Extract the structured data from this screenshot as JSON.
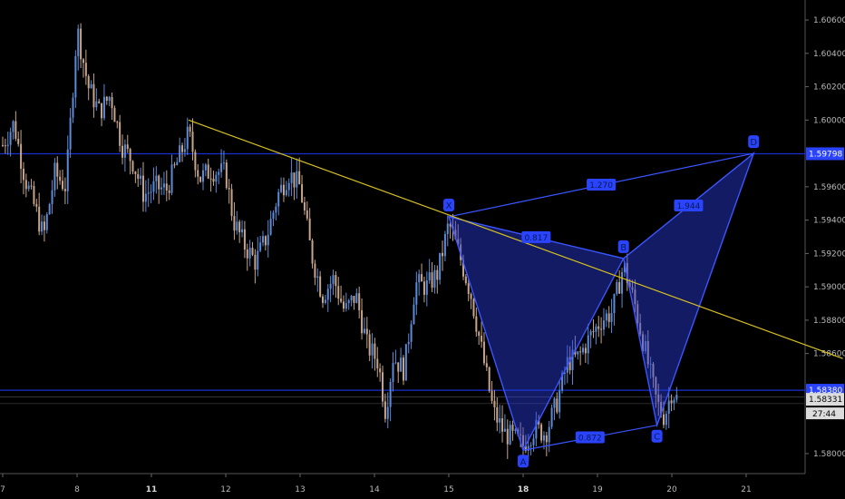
{
  "chart_data": {
    "type": "candlestick",
    "ylim": [
      1.5788,
      1.6072
    ],
    "xlim": [
      7,
      22.2
    ],
    "y_ticks": [
      "1.60600",
      "1.60400",
      "1.60200",
      "1.60000",
      "1.59600",
      "1.59400",
      "1.59200",
      "1.59000",
      "1.58800",
      "1.58600",
      "1.58000"
    ],
    "x_ticks": [
      {
        "label": "7",
        "x": 7.0,
        "bold": false
      },
      {
        "label": "8",
        "x": 8.0,
        "bold": false
      },
      {
        "label": "11",
        "x": 9.0,
        "bold": true
      },
      {
        "label": "12",
        "x": 10.0,
        "bold": false
      },
      {
        "label": "13",
        "x": 11.0,
        "bold": false
      },
      {
        "label": "14",
        "x": 12.0,
        "bold": false
      },
      {
        "label": "15",
        "x": 13.0,
        "bold": false
      },
      {
        "label": "18",
        "x": 14.0,
        "bold": true
      },
      {
        "label": "19",
        "x": 15.0,
        "bold": false
      },
      {
        "label": "20",
        "x": 16.0,
        "bold": false
      },
      {
        "label": "21",
        "x": 17.0,
        "bold": false
      }
    ],
    "horizontal_levels": [
      {
        "value": 1.59798,
        "label": "1.59798"
      },
      {
        "value": 1.5838,
        "label": "1.58380"
      }
    ],
    "last_price": "1.58331",
    "countdown": "27:44",
    "price_path": [
      [
        7.0,
        1.5985
      ],
      [
        7.15,
        1.5998
      ],
      [
        7.3,
        1.5965
      ],
      [
        7.45,
        1.5945
      ],
      [
        7.55,
        1.593
      ],
      [
        7.7,
        1.5968
      ],
      [
        7.85,
        1.596
      ],
      [
        8.0,
        1.6055
      ],
      [
        8.15,
        1.602
      ],
      [
        8.3,
        1.6005
      ],
      [
        8.45,
        1.6015
      ],
      [
        8.6,
        1.5985
      ],
      [
        8.75,
        1.5975
      ],
      [
        8.9,
        1.5955
      ],
      [
        9.05,
        1.596
      ],
      [
        9.2,
        1.5958
      ],
      [
        9.35,
        1.5975
      ],
      [
        9.5,
        1.5992
      ],
      [
        9.65,
        1.5965
      ],
      [
        9.8,
        1.597
      ],
      [
        10.0,
        1.5968
      ],
      [
        10.1,
        1.594
      ],
      [
        10.25,
        1.5925
      ],
      [
        10.4,
        1.5915
      ],
      [
        10.55,
        1.593
      ],
      [
        10.7,
        1.5955
      ],
      [
        10.85,
        1.5968
      ],
      [
        11.0,
        1.596
      ],
      [
        11.15,
        1.592
      ],
      [
        11.3,
        1.5895
      ],
      [
        11.45,
        1.5905
      ],
      [
        11.6,
        1.5885
      ],
      [
        11.75,
        1.5895
      ],
      [
        11.9,
        1.5865
      ],
      [
        12.05,
        1.5855
      ],
      [
        12.15,
        1.5825
      ],
      [
        12.25,
        1.5858
      ],
      [
        12.4,
        1.585
      ],
      [
        12.55,
        1.5902
      ],
      [
        12.7,
        1.59
      ],
      [
        12.85,
        1.5908
      ],
      [
        13.0,
        1.5938
      ],
      [
        13.15,
        1.5918
      ],
      [
        13.3,
        1.5895
      ],
      [
        13.45,
        1.586
      ],
      [
        13.6,
        1.5825
      ],
      [
        13.75,
        1.5812
      ],
      [
        13.85,
        1.581
      ],
      [
        14.0,
        1.5805
      ],
      [
        14.15,
        1.5815
      ],
      [
        14.3,
        1.5812
      ],
      [
        14.45,
        1.583
      ],
      [
        14.6,
        1.5855
      ],
      [
        14.75,
        1.5858
      ],
      [
        14.9,
        1.587
      ],
      [
        15.05,
        1.588
      ],
      [
        15.2,
        1.5885
      ],
      [
        15.35,
        1.5913
      ],
      [
        15.5,
        1.589
      ],
      [
        15.65,
        1.586
      ],
      [
        15.8,
        1.583
      ],
      [
        15.9,
        1.5822
      ],
      [
        16.0,
        1.5838
      ],
      [
        16.08,
        1.5832
      ]
    ],
    "trendline": {
      "from": [
        9.5,
        1.6
      ],
      "to": [
        18.3,
        1.5857
      ]
    },
    "pattern": {
      "points": [
        {
          "label": "X",
          "x": 13.0,
          "y": 1.5942
        },
        {
          "label": "A",
          "x": 14.0,
          "y": 1.5802
        },
        {
          "label": "B",
          "x": 15.35,
          "y": 1.5917
        },
        {
          "label": "C",
          "x": 15.8,
          "y": 1.5817
        },
        {
          "label": "D",
          "x": 17.1,
          "y": 1.598
        }
      ],
      "ratios": [
        {
          "label": "0.817",
          "between": [
            "X",
            "B"
          ]
        },
        {
          "label": "0.872",
          "between": [
            "A",
            "C"
          ]
        },
        {
          "label": "1.944",
          "between": [
            "B",
            "D"
          ]
        },
        {
          "label": "1.270",
          "between": [
            "X",
            "D"
          ]
        }
      ]
    }
  }
}
